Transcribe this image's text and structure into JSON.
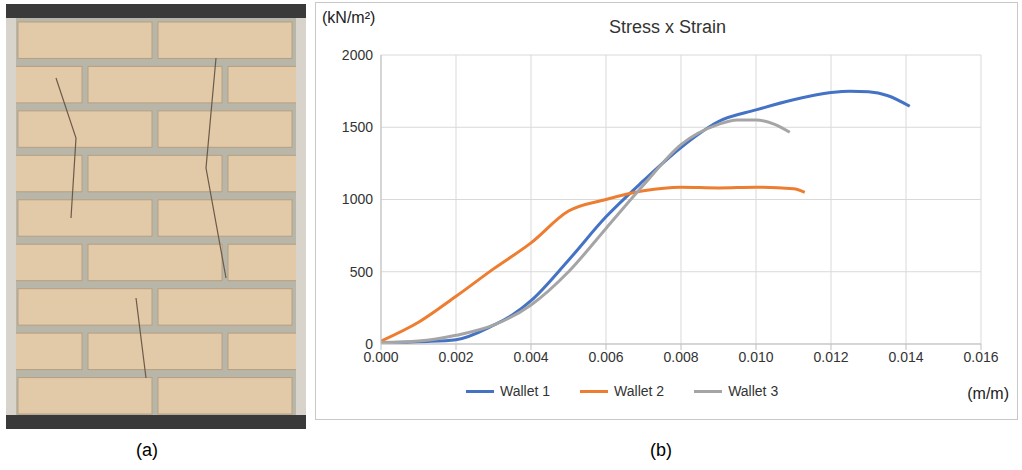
{
  "panel_labels": [
    "(a)",
    "(b)"
  ],
  "chart_data": {
    "type": "line",
    "title": "Stress x Strain",
    "y_label": "(kN/m²)",
    "x_label": "(m/m)",
    "xlim": [
      0,
      0.016
    ],
    "xticks": [
      {
        "value": 0,
        "label": "0.000"
      },
      {
        "value": 0.002,
        "label": "0.002"
      },
      {
        "value": 0.004,
        "label": "0.004"
      },
      {
        "value": 0.006,
        "label": "0.006"
      },
      {
        "value": 0.008,
        "label": "0.008"
      },
      {
        "value": 0.01,
        "label": "0.010"
      },
      {
        "value": 0.012,
        "label": "0.012"
      },
      {
        "value": 0.014,
        "label": "0.014"
      },
      {
        "value": 0.016,
        "label": "0.016"
      }
    ],
    "ylim": [
      0,
      2000
    ],
    "yticks": [
      0,
      500,
      1000,
      1500,
      2000
    ],
    "grid": true,
    "legend": "bottom",
    "series": [
      {
        "name": "Wallet 1",
        "color": "#4472c4",
        "x": [
          0,
          0.001,
          0.002,
          0.003,
          0.0035,
          0.004,
          0.005,
          0.006,
          0.007,
          0.008,
          0.009,
          0.01,
          0.011,
          0.012,
          0.0125,
          0.013,
          0.0135,
          0.0141
        ],
        "values": [
          0,
          15,
          30,
          130,
          200,
          300,
          580,
          880,
          1130,
          1360,
          1540,
          1620,
          1690,
          1740,
          1750,
          1745,
          1720,
          1645
        ]
      },
      {
        "name": "Wallet 2",
        "color": "#ed7d31",
        "x": [
          0,
          0.001,
          0.002,
          0.003,
          0.004,
          0.005,
          0.006,
          0.007,
          0.008,
          0.009,
          0.01,
          0.011,
          0.0113
        ],
        "values": [
          20,
          150,
          330,
          520,
          700,
          920,
          1000,
          1060,
          1085,
          1080,
          1085,
          1075,
          1050
        ]
      },
      {
        "name": "Wallet 3",
        "color": "#a5a5a5",
        "x": [
          0,
          0.001,
          0.002,
          0.003,
          0.004,
          0.005,
          0.006,
          0.007,
          0.008,
          0.009,
          0.0095,
          0.01,
          0.0105,
          0.0109
        ],
        "values": [
          10,
          20,
          60,
          130,
          270,
          500,
          800,
          1100,
          1380,
          1520,
          1550,
          1550,
          1520,
          1465
        ]
      }
    ]
  }
}
